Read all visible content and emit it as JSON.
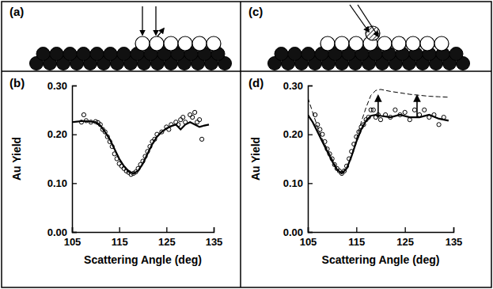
{
  "diagrams": [
    {
      "label": "(a)"
    },
    {
      "label": "(c)"
    }
  ],
  "chart_data": [
    {
      "type": "line",
      "title": "(b)",
      "x_label": "Scattering Angle (deg)",
      "y_label": "Au Yield",
      "xlim": [
        105,
        135
      ],
      "xticks": [
        105,
        115,
        125,
        135
      ],
      "ylim": [
        0,
        0.3
      ],
      "yticks": [
        {
          "value": 0,
          "label": "0.00"
        },
        {
          "value": 0.1,
          "label": "0.10"
        },
        {
          "value": 0.2,
          "label": "0.20"
        },
        {
          "value": 0.3,
          "label": "0.30"
        }
      ],
      "tick_labels": true,
      "series": [
        {
          "type": "scatter",
          "marker": "circle",
          "color": "#000000",
          "x": [
            107,
            107.5,
            108,
            109,
            110,
            110.5,
            111,
            111.5,
            112,
            112.5,
            113,
            113.5,
            114,
            114.5,
            115,
            115.5,
            116,
            116.5,
            117,
            117.5,
            118,
            118.5,
            119,
            119.5,
            120,
            120.5,
            121,
            121.5,
            122,
            122.5,
            123,
            124,
            125,
            125.5,
            126,
            127,
            127.5,
            128,
            128.5,
            129,
            130,
            130.5,
            131,
            131.5,
            132,
            132.5
          ],
          "values": [
            0.225,
            0.24,
            0.228,
            0.225,
            0.226,
            0.224,
            0.22,
            0.21,
            0.205,
            0.195,
            0.185,
            0.175,
            0.16,
            0.15,
            0.14,
            0.135,
            0.13,
            0.125,
            0.122,
            0.118,
            0.12,
            0.123,
            0.13,
            0.138,
            0.145,
            0.155,
            0.165,
            0.175,
            0.185,
            0.19,
            0.2,
            0.205,
            0.215,
            0.21,
            0.22,
            0.225,
            0.22,
            0.23,
            0.235,
            0.225,
            0.24,
            0.235,
            0.245,
            0.225,
            0.23,
            0.19
          ]
        },
        {
          "type": "line",
          "line_style": "solid",
          "color": "#000000",
          "x": [
            105,
            106,
            107,
            108,
            109,
            110,
            111,
            112,
            113,
            114,
            115,
            116,
            117,
            118,
            119,
            120,
            121,
            122,
            123,
            124,
            125,
            126,
            127,
            128,
            129,
            130,
            131,
            132,
            133,
            134
          ],
          "values": [
            0.225,
            0.226,
            0.227,
            0.227,
            0.226,
            0.225,
            0.218,
            0.205,
            0.19,
            0.17,
            0.15,
            0.135,
            0.124,
            0.12,
            0.125,
            0.14,
            0.16,
            0.18,
            0.195,
            0.205,
            0.212,
            0.217,
            0.22,
            0.21,
            0.22,
            0.225,
            0.22,
            0.215,
            0.218,
            0.22
          ]
        }
      ]
    },
    {
      "type": "line",
      "title": "(d)",
      "x_label": "Scattering Angle (deg)",
      "y_label": "Au Yield",
      "xlim": [
        105,
        135
      ],
      "xticks": [
        105,
        115,
        125,
        135
      ],
      "ylim": [
        0,
        0.3
      ],
      "yticks": [
        {
          "value": 0,
          "label": "0.00"
        },
        {
          "value": 0.1,
          "label": "0.10"
        },
        {
          "value": 0.2,
          "label": "0.20"
        },
        {
          "value": 0.3,
          "label": "0.30"
        }
      ],
      "tick_labels": true,
      "series": [
        {
          "type": "scatter",
          "marker": "circle",
          "color": "#000000",
          "x": [
            106.5,
            107,
            107.5,
            108,
            108.5,
            109,
            109.5,
            110,
            110.5,
            111,
            111.5,
            112,
            112.5,
            113,
            113.5,
            114,
            114.5,
            115,
            115.5,
            116,
            116.5,
            117,
            117.5,
            118,
            118.5,
            119,
            119.5,
            120,
            121,
            122,
            123,
            124,
            125,
            126,
            127,
            128,
            129,
            130,
            131,
            132,
            133
          ],
          "values": [
            0.24,
            0.22,
            0.21,
            0.2,
            0.185,
            0.17,
            0.16,
            0.15,
            0.138,
            0.13,
            0.125,
            0.12,
            0.125,
            0.135,
            0.15,
            0.165,
            0.18,
            0.195,
            0.205,
            0.215,
            0.22,
            0.23,
            0.235,
            0.25,
            0.25,
            0.235,
            0.24,
            0.23,
            0.24,
            0.235,
            0.25,
            0.24,
            0.245,
            0.23,
            0.25,
            0.24,
            0.25,
            0.235,
            0.24,
            0.22,
            0.235
          ]
        },
        {
          "type": "line",
          "line_style": "solid",
          "color": "#000000",
          "x": [
            105,
            106,
            107,
            108,
            109,
            110,
            111,
            112,
            113,
            114,
            115,
            116,
            117,
            118,
            119,
            120,
            122,
            124,
            126,
            128,
            130,
            132,
            134
          ],
          "values": [
            0.24,
            0.225,
            0.205,
            0.185,
            0.165,
            0.145,
            0.128,
            0.12,
            0.13,
            0.155,
            0.185,
            0.21,
            0.228,
            0.238,
            0.24,
            0.238,
            0.235,
            0.24,
            0.235,
            0.235,
            0.24,
            0.232,
            0.228
          ]
        },
        {
          "type": "line",
          "line_style": "dashed",
          "color": "#000000",
          "x": [
            105,
            106,
            107,
            108,
            109,
            110,
            111,
            112,
            113,
            114,
            115,
            116,
            117,
            118,
            119,
            120,
            121,
            122,
            124,
            126,
            128,
            130,
            132,
            134
          ],
          "values": [
            0.275,
            0.245,
            0.215,
            0.19,
            0.17,
            0.15,
            0.13,
            0.12,
            0.13,
            0.155,
            0.19,
            0.225,
            0.255,
            0.28,
            0.29,
            0.292,
            0.29,
            0.288,
            0.285,
            0.282,
            0.28,
            0.278,
            0.277,
            0.276
          ]
        }
      ]
    }
  ]
}
